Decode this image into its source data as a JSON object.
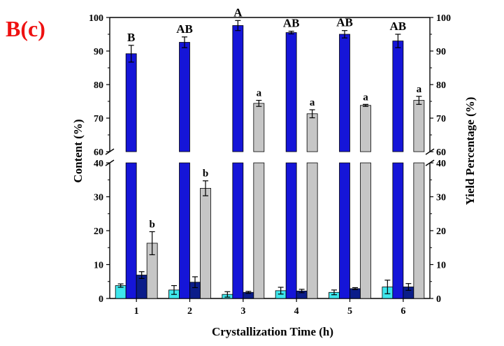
{
  "chart_data": {
    "type": "bar",
    "panel_label": "B(c)",
    "title": "",
    "xlabel": "Crystallization Time (h)",
    "ylabel": "Content (%)",
    "y2label": "Yield Percentage (%)",
    "categories": [
      "1",
      "2",
      "3",
      "4",
      "5",
      "6"
    ],
    "y_axis_break": {
      "lower_range": [
        0,
        40
      ],
      "upper_range": [
        60,
        100
      ]
    },
    "yticks": [
      0,
      10,
      20,
      30,
      40,
      60,
      70,
      80,
      90,
      100
    ],
    "colors": {
      "cyan": "#3ee6ec",
      "blue": "#1515d8",
      "navy": "#0b1d8a",
      "gray": "#c6c6c6",
      "panel_label": "#ee1111"
    },
    "series": [
      {
        "color_key": "cyan",
        "values": [
          3.8,
          2.5,
          1.2,
          2.3,
          1.8,
          3.4
        ],
        "errors": [
          0.5,
          1.3,
          0.8,
          1.0,
          0.7,
          2.0
        ],
        "labels": [
          "",
          "",
          "",
          "",
          "",
          ""
        ]
      },
      {
        "color_key": "blue",
        "values": [
          89.2,
          92.6,
          97.6,
          95.5,
          95.0,
          93.0
        ],
        "errors": [
          2.5,
          1.6,
          1.5,
          0.4,
          1.1,
          2.0
        ],
        "labels": [
          "B",
          "AB",
          "A",
          "AB",
          "AB",
          "AB"
        ]
      },
      {
        "color_key": "navy",
        "values": [
          6.9,
          4.8,
          1.8,
          2.2,
          2.9,
          3.4
        ],
        "errors": [
          1.0,
          1.6,
          0.3,
          0.5,
          0.3,
          1.0
        ],
        "labels": [
          "",
          "",
          "",
          "",
          "",
          ""
        ]
      },
      {
        "color_key": "gray",
        "values": [
          16.3,
          32.5,
          74.4,
          71.3,
          73.8,
          75.3
        ],
        "errors": [
          3.4,
          2.2,
          0.9,
          1.2,
          0.3,
          1.2
        ],
        "labels": [
          "b",
          "b",
          "a",
          "a",
          "a",
          "a"
        ]
      }
    ]
  }
}
